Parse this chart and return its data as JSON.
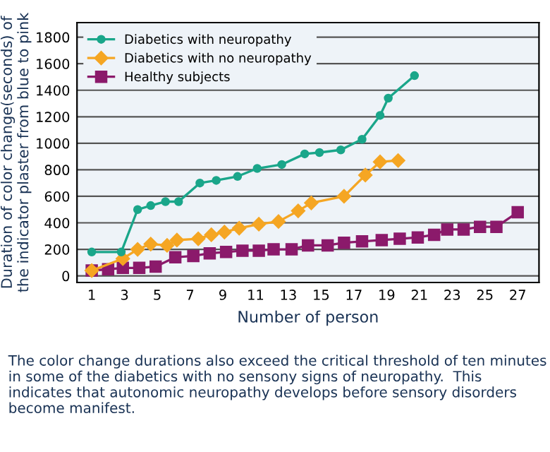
{
  "chart_data": {
    "type": "line",
    "xlabel": "Number of person",
    "ylabel": "Duration of color change(seconds) of\nthe indicator plaster from blue to pink",
    "xlim": [
      0.1,
      28.3
    ],
    "xticks": [
      1,
      3,
      5,
      7,
      9,
      11,
      13,
      15,
      17,
      19,
      21,
      23,
      25,
      27
    ],
    "ylim": [
      -50,
      1910
    ],
    "yticks": [
      0,
      200,
      400,
      600,
      800,
      1000,
      1200,
      1400,
      1600,
      1800
    ],
    "grid": "y",
    "legend": "top left",
    "series": [
      {
        "name": "Diabetics with neuropathy",
        "color": "#1aa68a",
        "marker": "circle",
        "x": [
          1,
          2.8,
          3.8,
          4.6,
          5.5,
          6.3,
          7.6,
          8.6,
          9.9,
          11.1,
          12.6,
          14.0,
          14.9,
          16.2,
          17.5,
          18.6,
          19.1,
          20.7
        ],
        "values": [
          180,
          180,
          500,
          530,
          560,
          560,
          700,
          720,
          750,
          810,
          840,
          920,
          930,
          950,
          1030,
          1210,
          1340,
          1510
        ]
      },
      {
        "name": "Diabetics with no neuropathy",
        "color": "#f5a623",
        "marker": "diamond",
        "x": [
          1,
          2.9,
          3.8,
          4.6,
          5.6,
          6.2,
          7.5,
          8.3,
          9.1,
          10.0,
          11.2,
          12.4,
          13.6,
          14.4,
          16.4,
          17.7,
          18.6,
          19.7
        ],
        "values": [
          40,
          130,
          200,
          240,
          230,
          270,
          280,
          310,
          330,
          360,
          390,
          410,
          490,
          550,
          600,
          760,
          860,
          870
        ]
      },
      {
        "name": "Healthy subjects",
        "color": "#8b1a6b",
        "marker": "square",
        "x": [
          1,
          2,
          2.9,
          3.9,
          4.9,
          6.1,
          7.2,
          8.2,
          9.2,
          10.2,
          11.2,
          12.1,
          13.2,
          14.2,
          15.4,
          16.4,
          17.5,
          18.7,
          19.8,
          20.9,
          21.9,
          22.7,
          23.7,
          24.7,
          25.7,
          27
        ],
        "values": [
          40,
          50,
          60,
          60,
          70,
          140,
          150,
          170,
          180,
          190,
          190,
          200,
          200,
          230,
          230,
          250,
          260,
          270,
          280,
          290,
          310,
          350,
          350,
          370,
          370,
          480
        ]
      }
    ],
    "annotations": [
      "The color change durations also exceed the critical threshold of ten minutes in some of the diabetics with no sensony signs of neuropathy.  This indicates that autonomic neuropathy develops before sensory disorders become manifest."
    ]
  }
}
